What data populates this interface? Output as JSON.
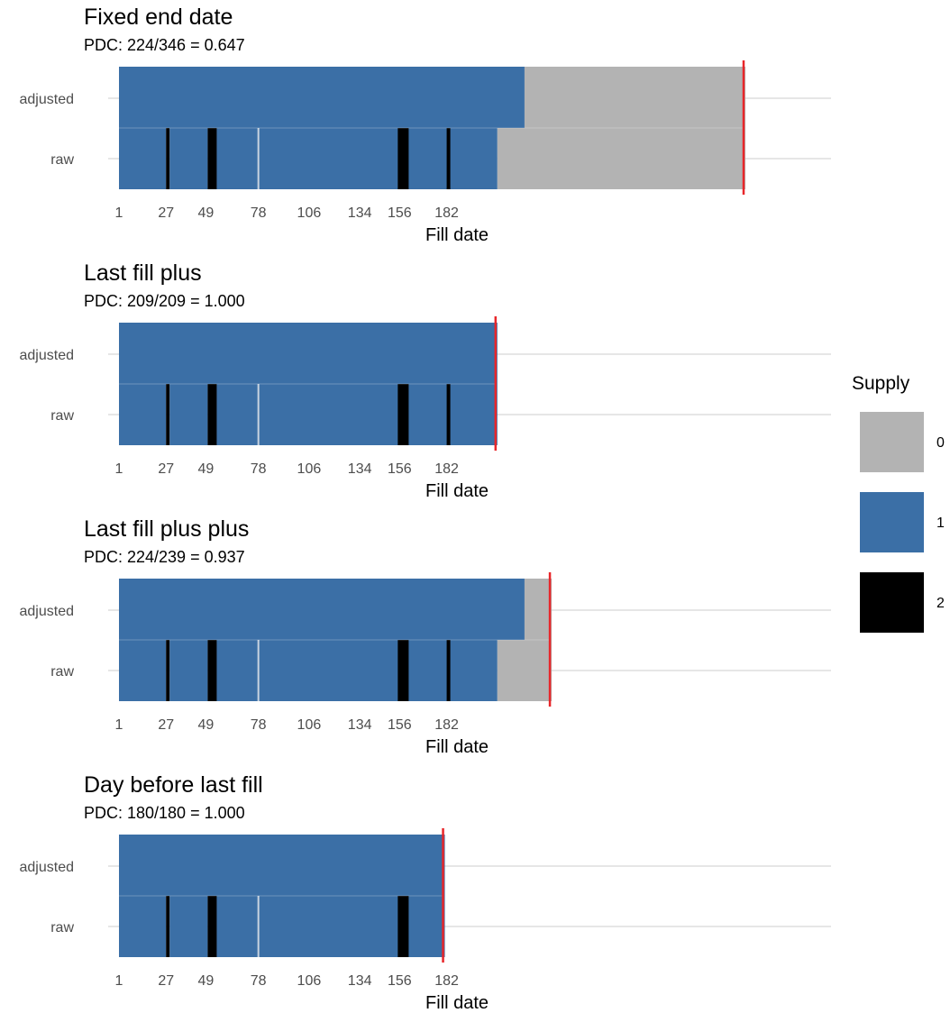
{
  "chart_data": [
    {
      "type": "bar",
      "title": "Fixed end date",
      "subtitle": "PDC: 224/346 = 0.647",
      "xlabel": "Fill date",
      "categories": [
        "adjusted",
        "raw"
      ],
      "x_ticks": [
        1,
        27,
        49,
        78,
        106,
        134,
        156,
        182
      ],
      "end_line": 346,
      "series": [
        {
          "name": "adjusted",
          "segments": [
            {
              "start": 1,
              "end": 224,
              "supply": 1
            },
            {
              "start": 225,
              "end": 346,
              "supply": 0
            }
          ]
        },
        {
          "name": "raw",
          "segments": [
            {
              "start": 1,
              "end": 26,
              "supply": 1
            },
            {
              "start": 27,
              "end": 28,
              "supply": 2
            },
            {
              "start": 29,
              "end": 49,
              "supply": 1
            },
            {
              "start": 50,
              "end": 54,
              "supply": 2
            },
            {
              "start": 55,
              "end": 209,
              "supply": 1
            },
            {
              "start": 210,
              "end": 346,
              "supply": 0
            }
          ]
        }
      ]
    },
    {
      "type": "bar",
      "title": "Last fill plus",
      "subtitle": "PDC: 209/209 = 1.000",
      "xlabel": "Fill date",
      "categories": [
        "adjusted",
        "raw"
      ],
      "x_ticks": [
        1,
        27,
        49,
        78,
        106,
        134,
        156,
        182
      ],
      "end_line": 209,
      "series": [
        {
          "name": "adjusted",
          "segments": [
            {
              "start": 1,
              "end": 209,
              "supply": 1
            }
          ]
        },
        {
          "name": "raw",
          "segments": [
            {
              "start": 1,
              "end": 26,
              "supply": 1
            },
            {
              "start": 27,
              "end": 28,
              "supply": 2
            },
            {
              "start": 29,
              "end": 49,
              "supply": 1
            },
            {
              "start": 50,
              "end": 54,
              "supply": 2
            },
            {
              "start": 55,
              "end": 209,
              "supply": 1
            }
          ]
        }
      ]
    },
    {
      "type": "bar",
      "title": "Last fill plus plus",
      "subtitle": "PDC: 224/239 = 0.937",
      "xlabel": "Fill date",
      "categories": [
        "adjusted",
        "raw"
      ],
      "x_ticks": [
        1,
        27,
        49,
        78,
        106,
        134,
        156,
        182
      ],
      "end_line": 239,
      "series": [
        {
          "name": "adjusted",
          "segments": [
            {
              "start": 1,
              "end": 224,
              "supply": 1
            },
            {
              "start": 225,
              "end": 239,
              "supply": 0
            }
          ]
        },
        {
          "name": "raw",
          "segments": [
            {
              "start": 1,
              "end": 26,
              "supply": 1
            },
            {
              "start": 27,
              "end": 28,
              "supply": 2
            },
            {
              "start": 29,
              "end": 49,
              "supply": 1
            },
            {
              "start": 50,
              "end": 54,
              "supply": 2
            },
            {
              "start": 55,
              "end": 209,
              "supply": 1
            },
            {
              "start": 210,
              "end": 239,
              "supply": 0
            }
          ]
        }
      ]
    },
    {
      "type": "bar",
      "title": "Day before last fill",
      "subtitle": "PDC: 180/180 = 1.000",
      "xlabel": "Fill date",
      "categories": [
        "adjusted",
        "raw"
      ],
      "x_ticks": [
        1,
        27,
        49,
        78,
        106,
        134,
        156,
        182
      ],
      "end_line": 180,
      "series": [
        {
          "name": "adjusted",
          "segments": [
            {
              "start": 1,
              "end": 180,
              "supply": 1
            }
          ]
        },
        {
          "name": "raw",
          "segments": [
            {
              "start": 1,
              "end": 26,
              "supply": 1
            },
            {
              "start": 27,
              "end": 28,
              "supply": 2
            },
            {
              "start": 29,
              "end": 49,
              "supply": 1
            },
            {
              "start": 50,
              "end": 54,
              "supply": 2
            },
            {
              "start": 55,
              "end": 180,
              "supply": 1
            }
          ]
        }
      ]
    }
  ],
  "common_marks": {
    "raw_extra_black_spans": [
      [
        155,
        160
      ],
      [
        182,
        183
      ]
    ],
    "raw_gap_day": 78
  },
  "legend": {
    "title": "Supply",
    "placement": "right",
    "items": [
      {
        "label": "0",
        "color": "#b3b3b3"
      },
      {
        "label": "1",
        "color": "#3b6fa6"
      },
      {
        "label": "2",
        "color": "#000000"
      }
    ]
  },
  "colors": {
    "supply_0": "#b3b3b3",
    "supply_1": "#3b6fa6",
    "supply_2": "#000000",
    "end_line": "#e8262a",
    "grid": "#e6e6e6"
  }
}
